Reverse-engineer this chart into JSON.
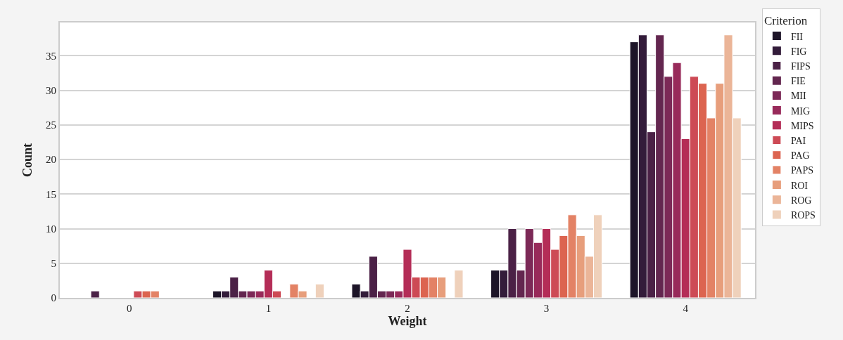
{
  "chart_data": {
    "type": "bar",
    "xlabel": "Weight",
    "ylabel": "Count",
    "legend_title": "Criterion",
    "categories": [
      "0",
      "1",
      "2",
      "3",
      "4"
    ],
    "series": [
      {
        "name": "FII",
        "color": "#1d1528",
        "values": [
          0,
          1,
          2,
          4,
          37
        ]
      },
      {
        "name": "FIG",
        "color": "#331c3a",
        "values": [
          0,
          1,
          1,
          4,
          38
        ]
      },
      {
        "name": "FIPS",
        "color": "#4b2146",
        "values": [
          1,
          3,
          6,
          10,
          24
        ]
      },
      {
        "name": "FIE",
        "color": "#63264f",
        "values": [
          0,
          1,
          1,
          4,
          38
        ]
      },
      {
        "name": "MII",
        "color": "#7c2957",
        "values": [
          0,
          1,
          1,
          10,
          32
        ]
      },
      {
        "name": "MIG",
        "color": "#982a5a",
        "values": [
          0,
          1,
          1,
          8,
          34
        ]
      },
      {
        "name": "MIPS",
        "color": "#b42d57",
        "values": [
          0,
          4,
          7,
          10,
          23
        ]
      },
      {
        "name": "PAI",
        "color": "#cd4a55",
        "values": [
          1,
          1,
          3,
          7,
          32
        ]
      },
      {
        "name": "PAG",
        "color": "#dc6450",
        "values": [
          1,
          0,
          3,
          9,
          31
        ]
      },
      {
        "name": "PAPS",
        "color": "#e38265",
        "values": [
          1,
          2,
          3,
          12,
          26
        ]
      },
      {
        "name": "ROI",
        "color": "#e79e7c",
        "values": [
          0,
          1,
          3,
          9,
          31
        ]
      },
      {
        "name": "ROG",
        "color": "#ebb598",
        "values": [
          0,
          0,
          0,
          6,
          38
        ]
      },
      {
        "name": "ROPS",
        "color": "#efd1bb",
        "values": [
          0,
          2,
          4,
          12,
          26
        ]
      }
    ],
    "ylim": [
      0,
      39.8
    ],
    "yticks": [
      0,
      5,
      10,
      15,
      20,
      25,
      30,
      35
    ],
    "grid": "y",
    "legend": "right"
  }
}
